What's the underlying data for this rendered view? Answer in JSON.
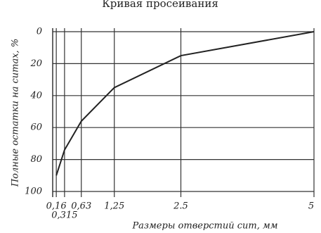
{
  "chart_data": {
    "type": "line",
    "title": "Кривая просеивания",
    "x_label": "Размеры отверстий сит, мм",
    "y_label": "Полные остатки на ситах, %",
    "x": [
      0.16,
      0.315,
      0.63,
      1.25,
      2.5,
      5
    ],
    "values": [
      90,
      74,
      56,
      35,
      15,
      0
    ],
    "color": "#222222",
    "xlim": [
      0,
      5
    ],
    "ylim": [
      100,
      0
    ],
    "xticks": [
      {
        "value": 0.16,
        "label": "0,16"
      },
      {
        "value": 0.315,
        "label": "0,315"
      },
      {
        "value": 0.63,
        "label": "0,63"
      },
      {
        "value": 1.25,
        "label": "1,25"
      },
      {
        "value": 2.5,
        "label": "2.5"
      },
      5
    ],
    "yticks": [
      0,
      20,
      40,
      60,
      80,
      100
    ],
    "grid": true
  }
}
